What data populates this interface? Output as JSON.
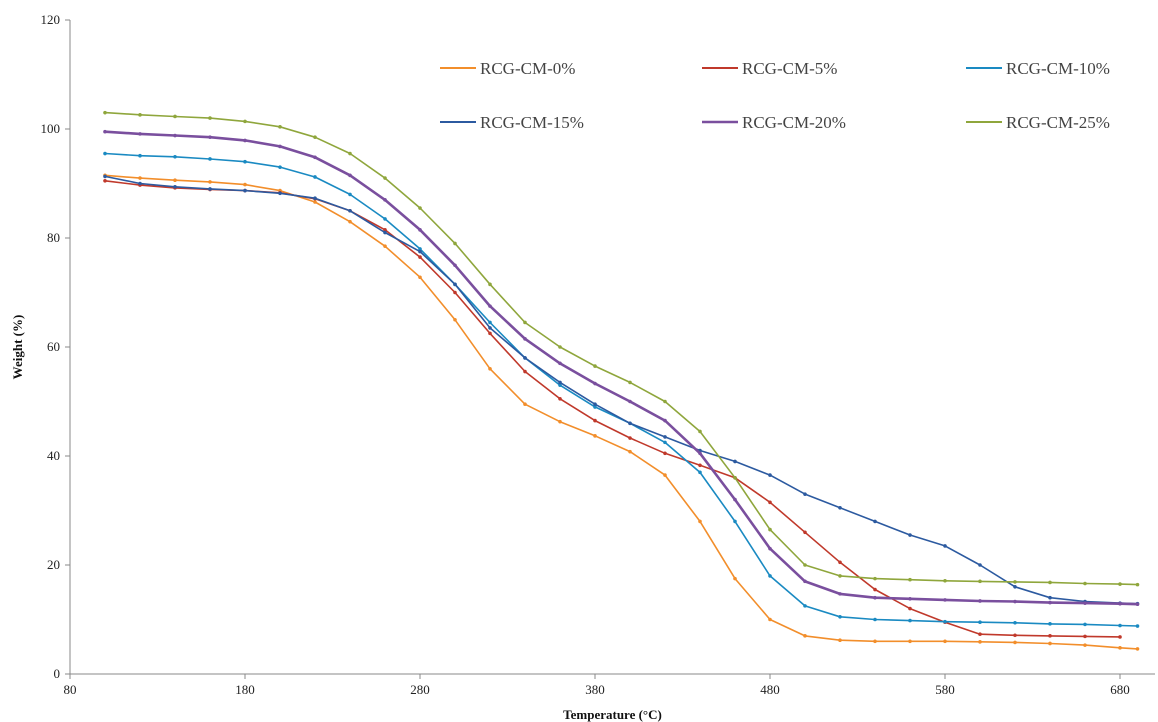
{
  "chart_data": {
    "type": "line",
    "title": "",
    "xlabel": "Temperature (°C)",
    "ylabel": "Weight (%)",
    "xlim": [
      80,
      700
    ],
    "ylim": [
      0,
      120
    ],
    "x_ticks": [
      80,
      180,
      280,
      380,
      480,
      580,
      680
    ],
    "y_ticks": [
      0,
      20,
      40,
      60,
      80,
      100,
      120
    ],
    "grid": false,
    "legend_position": "top",
    "series": [
      {
        "name": "RCG-CM-0%",
        "color": "#f28e2b",
        "points": [
          [
            100,
            91.5
          ],
          [
            120,
            91.0
          ],
          [
            140,
            90.6
          ],
          [
            160,
            90.3
          ],
          [
            180,
            89.8
          ],
          [
            200,
            88.7
          ],
          [
            220,
            86.6
          ],
          [
            240,
            83.0
          ],
          [
            260,
            78.5
          ],
          [
            280,
            72.8
          ],
          [
            300,
            65.0
          ],
          [
            320,
            56.0
          ],
          [
            340,
            49.5
          ],
          [
            360,
            46.3
          ],
          [
            380,
            43.7
          ],
          [
            400,
            40.8
          ],
          [
            420,
            36.5
          ],
          [
            440,
            28.0
          ],
          [
            460,
            17.5
          ],
          [
            480,
            10.0
          ],
          [
            500,
            7.0
          ],
          [
            520,
            6.2
          ],
          [
            540,
            6.0
          ],
          [
            560,
            6.0
          ],
          [
            580,
            6.0
          ],
          [
            600,
            5.9
          ],
          [
            620,
            5.8
          ],
          [
            640,
            5.6
          ],
          [
            660,
            5.3
          ],
          [
            680,
            4.8
          ],
          [
            690,
            4.6
          ]
        ]
      },
      {
        "name": "RCG-CM-5%",
        "color": "#c0392b",
        "points": [
          [
            100,
            90.5
          ],
          [
            120,
            89.7
          ],
          [
            140,
            89.2
          ],
          [
            160,
            88.9
          ],
          [
            180,
            88.7
          ],
          [
            200,
            88.3
          ],
          [
            220,
            87.2
          ],
          [
            240,
            85.0
          ],
          [
            260,
            81.5
          ],
          [
            280,
            76.5
          ],
          [
            300,
            70.0
          ],
          [
            320,
            62.5
          ],
          [
            340,
            55.5
          ],
          [
            360,
            50.5
          ],
          [
            380,
            46.5
          ],
          [
            400,
            43.3
          ],
          [
            420,
            40.5
          ],
          [
            440,
            38.3
          ],
          [
            460,
            36.0
          ],
          [
            480,
            31.5
          ],
          [
            500,
            26.0
          ],
          [
            520,
            20.5
          ],
          [
            540,
            15.5
          ],
          [
            560,
            12.0
          ],
          [
            580,
            9.5
          ],
          [
            600,
            7.3
          ],
          [
            620,
            7.1
          ],
          [
            640,
            7.0
          ],
          [
            660,
            6.9
          ],
          [
            680,
            6.8
          ]
        ]
      },
      {
        "name": "RCG-CM-10%",
        "color": "#1a8ac2",
        "points": [
          [
            100,
            95.5
          ],
          [
            120,
            95.1
          ],
          [
            140,
            94.9
          ],
          [
            160,
            94.5
          ],
          [
            180,
            94.0
          ],
          [
            200,
            93.0
          ],
          [
            220,
            91.2
          ],
          [
            240,
            88.0
          ],
          [
            260,
            83.5
          ],
          [
            280,
            78.0
          ],
          [
            300,
            71.5
          ],
          [
            320,
            64.5
          ],
          [
            340,
            58.0
          ],
          [
            360,
            53.0
          ],
          [
            380,
            49.0
          ],
          [
            400,
            46.0
          ],
          [
            420,
            42.5
          ],
          [
            440,
            37.0
          ],
          [
            460,
            28.0
          ],
          [
            480,
            18.0
          ],
          [
            500,
            12.5
          ],
          [
            520,
            10.5
          ],
          [
            540,
            10.0
          ],
          [
            560,
            9.8
          ],
          [
            580,
            9.6
          ],
          [
            600,
            9.5
          ],
          [
            620,
            9.4
          ],
          [
            640,
            9.2
          ],
          [
            660,
            9.1
          ],
          [
            680,
            8.9
          ],
          [
            690,
            8.8
          ]
        ]
      },
      {
        "name": "RCG-CM-15%",
        "color": "#2c5aa0",
        "points": [
          [
            100,
            91.3
          ],
          [
            120,
            90.0
          ],
          [
            140,
            89.4
          ],
          [
            160,
            89.0
          ],
          [
            180,
            88.7
          ],
          [
            200,
            88.2
          ],
          [
            220,
            87.3
          ],
          [
            240,
            85.0
          ],
          [
            260,
            81.0
          ],
          [
            280,
            77.5
          ],
          [
            300,
            71.5
          ],
          [
            320,
            63.5
          ],
          [
            340,
            58.0
          ],
          [
            360,
            53.5
          ],
          [
            380,
            49.5
          ],
          [
            400,
            46.0
          ],
          [
            420,
            43.5
          ],
          [
            440,
            41.0
          ],
          [
            460,
            39.0
          ],
          [
            480,
            36.5
          ],
          [
            500,
            33.0
          ],
          [
            520,
            30.5
          ],
          [
            540,
            28.0
          ],
          [
            560,
            25.5
          ],
          [
            580,
            23.5
          ],
          [
            600,
            20.0
          ],
          [
            620,
            16.0
          ],
          [
            640,
            14.0
          ],
          [
            660,
            13.3
          ],
          [
            680,
            13.0
          ],
          [
            690,
            12.9
          ]
        ]
      },
      {
        "name": "RCG-CM-20%",
        "color": "#7a4f9e",
        "points": [
          [
            100,
            99.5
          ],
          [
            120,
            99.1
          ],
          [
            140,
            98.8
          ],
          [
            160,
            98.5
          ],
          [
            180,
            97.9
          ],
          [
            200,
            96.8
          ],
          [
            220,
            94.8
          ],
          [
            240,
            91.5
          ],
          [
            260,
            87.0
          ],
          [
            280,
            81.5
          ],
          [
            300,
            75.0
          ],
          [
            320,
            67.5
          ],
          [
            340,
            61.5
          ],
          [
            360,
            57.0
          ],
          [
            380,
            53.3
          ],
          [
            400,
            50.0
          ],
          [
            420,
            46.5
          ],
          [
            440,
            40.5
          ],
          [
            460,
            32.0
          ],
          [
            480,
            23.0
          ],
          [
            500,
            17.0
          ],
          [
            520,
            14.7
          ],
          [
            540,
            14.0
          ],
          [
            560,
            13.8
          ],
          [
            580,
            13.6
          ],
          [
            600,
            13.4
          ],
          [
            620,
            13.3
          ],
          [
            640,
            13.1
          ],
          [
            660,
            13.0
          ],
          [
            680,
            12.9
          ],
          [
            690,
            12.8
          ]
        ]
      },
      {
        "name": "RCG-CM-25%",
        "color": "#8fa63c",
        "points": [
          [
            100,
            103.0
          ],
          [
            120,
            102.6
          ],
          [
            140,
            102.3
          ],
          [
            160,
            102.0
          ],
          [
            180,
            101.4
          ],
          [
            200,
            100.4
          ],
          [
            220,
            98.5
          ],
          [
            240,
            95.5
          ],
          [
            260,
            91.0
          ],
          [
            280,
            85.5
          ],
          [
            300,
            79.0
          ],
          [
            320,
            71.5
          ],
          [
            340,
            64.5
          ],
          [
            360,
            60.0
          ],
          [
            380,
            56.5
          ],
          [
            400,
            53.5
          ],
          [
            420,
            50.0
          ],
          [
            440,
            44.5
          ],
          [
            460,
            36.0
          ],
          [
            480,
            26.5
          ],
          [
            500,
            20.0
          ],
          [
            520,
            18.0
          ],
          [
            540,
            17.5
          ],
          [
            560,
            17.3
          ],
          [
            580,
            17.1
          ],
          [
            600,
            17.0
          ],
          [
            620,
            16.9
          ],
          [
            640,
            16.8
          ],
          [
            660,
            16.6
          ],
          [
            680,
            16.5
          ],
          [
            690,
            16.4
          ]
        ]
      }
    ]
  }
}
